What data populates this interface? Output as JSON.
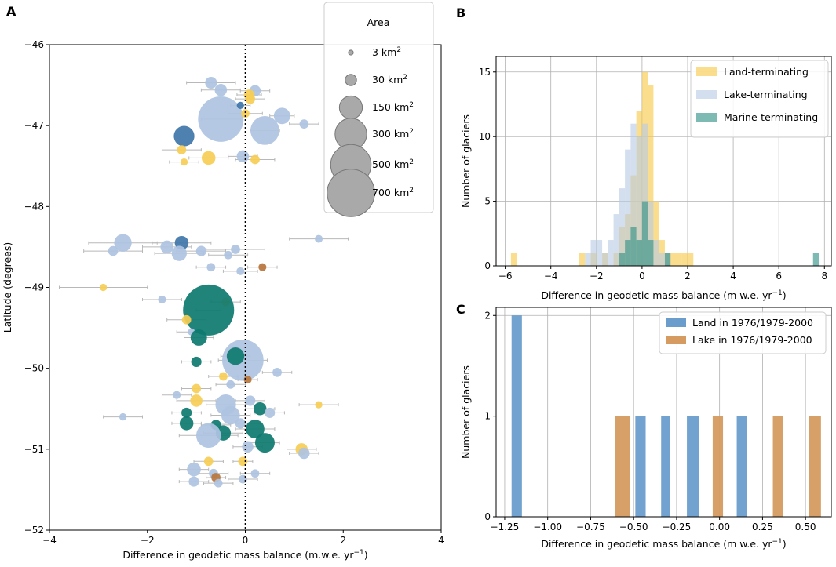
{
  "colors": {
    "land": "#f6cd55",
    "lake": "#aec3e1",
    "marine": "#0e7a6f",
    "dark_blue": "#3f75a9",
    "brown": "#b9753c",
    "error_bar": "#b8b8b8",
    "hist_land": "#f7c948",
    "hist_lake": "#b8cbe4",
    "hist_marine": "#2e8f86",
    "histC_land": "#6a9dcc",
    "histC_lake": "#d59b61"
  },
  "chart_data": [
    {
      "panel": "A",
      "type": "scatter",
      "xlabel": "Difference in geodetic mass balance (m.w.e. yr",
      "xlabel_sup": "−1",
      "xlabel_end": ")",
      "ylabel": "Latitude (degrees)",
      "xlim": [
        -4,
        4
      ],
      "ylim": [
        -52,
        -46
      ],
      "xticks": [
        -4,
        -2,
        0,
        2,
        4
      ],
      "yticks": [
        -52,
        -51,
        -50,
        -49,
        -48,
        -47,
        -46
      ],
      "reference_line_x": 0,
      "legend": {
        "title": "Area",
        "unit": "km",
        "sup": "2",
        "entries": [
          {
            "label": "3 km",
            "area": 3
          },
          {
            "label": "30 km",
            "area": 30
          },
          {
            "label": "150 km",
            "area": 150
          },
          {
            "label": "300 km",
            "area": 300
          },
          {
            "label": "500 km",
            "area": 500
          },
          {
            "label": "700 km",
            "area": 700
          }
        ]
      },
      "points": [
        {
          "x": -0.5,
          "y": -46.92,
          "area": 550,
          "c": "lake",
          "xerr": 0.4
        },
        {
          "x": 0.4,
          "y": -47.06,
          "area": 210,
          "c": "lake",
          "xerr": 0.3
        },
        {
          "x": 0.75,
          "y": -46.88,
          "area": 60,
          "c": "lake",
          "xerr": 0.25
        },
        {
          "x": -1.25,
          "y": -47.13,
          "area": 100,
          "c": "dark_blue",
          "xerr": 0.2
        },
        {
          "x": -0.7,
          "y": -46.47,
          "area": 28,
          "c": "lake",
          "xerr": 0.5
        },
        {
          "x": -0.5,
          "y": -46.56,
          "area": 30,
          "c": "lake",
          "xerr": 0.4
        },
        {
          "x": 0.2,
          "y": -46.57,
          "area": 25,
          "c": "lake",
          "xerr": 0.3
        },
        {
          "x": 0.08,
          "y": -46.62,
          "area": 22,
          "c": "land",
          "xerr": 0.25
        },
        {
          "x": 0.1,
          "y": -46.67,
          "area": 18,
          "c": "land",
          "xerr": 0.3
        },
        {
          "x": -0.1,
          "y": -46.75,
          "area": 8,
          "c": "dark_blue",
          "xerr": 0.2
        },
        {
          "x": 0.0,
          "y": -46.85,
          "area": 12,
          "c": "land",
          "xerr": 0.35
        },
        {
          "x": 1.2,
          "y": -46.98,
          "area": 15,
          "c": "lake",
          "xerr": 0.3
        },
        {
          "x": -1.3,
          "y": -47.3,
          "area": 15,
          "c": "land",
          "xerr": 0.4
        },
        {
          "x": -0.75,
          "y": -47.4,
          "area": 40,
          "c": "land",
          "xerr": 0.4
        },
        {
          "x": -0.05,
          "y": -47.38,
          "area": 30,
          "c": "lake",
          "xerr": 0.3
        },
        {
          "x": 0.2,
          "y": -47.42,
          "area": 15,
          "c": "land",
          "xerr": 0.4
        },
        {
          "x": -1.25,
          "y": -47.45,
          "area": 8,
          "c": "land",
          "xerr": 0.3
        },
        {
          "x": -2.5,
          "y": -48.45,
          "area": 70,
          "c": "lake",
          "xerr": 0.7
        },
        {
          "x": -1.3,
          "y": -48.45,
          "area": 40,
          "c": "dark_blue",
          "xerr": 0.6
        },
        {
          "x": -2.7,
          "y": -48.55,
          "area": 18,
          "c": "lake",
          "xerr": 0.6
        },
        {
          "x": -1.6,
          "y": -48.5,
          "area": 35,
          "c": "lake",
          "xerr": 0.5
        },
        {
          "x": -1.35,
          "y": -48.58,
          "area": 50,
          "c": "lake",
          "xerr": 0.5
        },
        {
          "x": -0.9,
          "y": -48.55,
          "area": 20,
          "c": "lake",
          "xerr": 0.5
        },
        {
          "x": -0.2,
          "y": -48.53,
          "area": 15,
          "c": "lake",
          "xerr": 0.6
        },
        {
          "x": -0.35,
          "y": -48.6,
          "area": 12,
          "c": "lake",
          "xerr": 0.4
        },
        {
          "x": 1.5,
          "y": -48.4,
          "area": 10,
          "c": "lake",
          "xerr": 0.6
        },
        {
          "x": -0.7,
          "y": -48.75,
          "area": 12,
          "c": "lake",
          "xerr": 0.3
        },
        {
          "x": 0.35,
          "y": -48.75,
          "area": 10,
          "c": "brown",
          "xerr": 0.3
        },
        {
          "x": -0.1,
          "y": -48.8,
          "area": 10,
          "c": "lake",
          "xerr": 0.35
        },
        {
          "x": -2.9,
          "y": -49.0,
          "area": 8,
          "c": "land",
          "xerr": 0.9
        },
        {
          "x": -0.4,
          "y": -49.18,
          "area": 12,
          "c": "land",
          "xerr": 0.3
        },
        {
          "x": -1.7,
          "y": -49.15,
          "area": 10,
          "c": "lake",
          "xerr": 0.4
        },
        {
          "x": -0.75,
          "y": -49.28,
          "area": 700,
          "c": "marine",
          "xerr": 0.25
        },
        {
          "x": -1.2,
          "y": -49.4,
          "area": 15,
          "c": "land",
          "xerr": 0.4
        },
        {
          "x": -1.1,
          "y": -49.55,
          "area": 8,
          "c": "lake",
          "xerr": 0.3
        },
        {
          "x": -0.95,
          "y": -49.62,
          "area": 60,
          "c": "marine",
          "xerr": 0.3
        },
        {
          "x": -0.05,
          "y": -49.9,
          "area": 450,
          "c": "lake",
          "xerr": 0.5
        },
        {
          "x": -0.2,
          "y": -49.85,
          "area": 70,
          "c": "marine",
          "xerr": 0.3
        },
        {
          "x": -1.0,
          "y": -49.92,
          "area": 20,
          "c": "marine",
          "xerr": 0.3
        },
        {
          "x": 0.65,
          "y": -50.05,
          "area": 15,
          "c": "lake",
          "xerr": 0.3
        },
        {
          "x": -0.45,
          "y": -50.1,
          "area": 12,
          "c": "land",
          "xerr": 0.3
        },
        {
          "x": 0.05,
          "y": -50.14,
          "area": 10,
          "c": "brown",
          "xerr": 0.2
        },
        {
          "x": -0.3,
          "y": -50.2,
          "area": 12,
          "c": "lake",
          "xerr": 0.3
        },
        {
          "x": -1.0,
          "y": -50.25,
          "area": 15,
          "c": "land",
          "xerr": 0.3
        },
        {
          "x": -1.4,
          "y": -50.33,
          "area": 10,
          "c": "lake",
          "xerr": 0.3
        },
        {
          "x": -1.0,
          "y": -50.4,
          "area": 30,
          "c": "land",
          "xerr": 0.4
        },
        {
          "x": -0.4,
          "y": -50.45,
          "area": 100,
          "c": "lake",
          "xerr": 0.4
        },
        {
          "x": 0.1,
          "y": -50.4,
          "area": 20,
          "c": "lake",
          "xerr": 0.3
        },
        {
          "x": 0.3,
          "y": -50.5,
          "area": 35,
          "c": "marine",
          "xerr": 0.3
        },
        {
          "x": 0.5,
          "y": -50.55,
          "area": 20,
          "c": "lake",
          "xerr": 0.3
        },
        {
          "x": -0.3,
          "y": -50.58,
          "area": 80,
          "c": "lake",
          "xerr": 0.4
        },
        {
          "x": 1.5,
          "y": -50.45,
          "area": 8,
          "c": "land",
          "xerr": 0.4
        },
        {
          "x": -1.2,
          "y": -50.55,
          "area": 20,
          "c": "marine",
          "xerr": 0.3
        },
        {
          "x": -2.5,
          "y": -50.6,
          "area": 8,
          "c": "lake",
          "xerr": 0.4
        },
        {
          "x": -1.2,
          "y": -50.68,
          "area": 40,
          "c": "marine",
          "xerr": 0.3
        },
        {
          "x": -0.45,
          "y": -50.8,
          "area": 50,
          "c": "marine",
          "xerr": 0.4
        },
        {
          "x": -0.6,
          "y": -50.7,
          "area": 20,
          "c": "marine",
          "xerr": 0.3
        },
        {
          "x": -0.1,
          "y": -50.68,
          "area": 20,
          "c": "lake",
          "xerr": 0.4
        },
        {
          "x": 0.2,
          "y": -50.75,
          "area": 80,
          "c": "marine",
          "xerr": 0.4
        },
        {
          "x": -0.75,
          "y": -50.83,
          "area": 150,
          "c": "lake",
          "xerr": 0.6
        },
        {
          "x": 0.4,
          "y": -50.92,
          "area": 90,
          "c": "marine",
          "xerr": 0.3
        },
        {
          "x": 0.05,
          "y": -50.97,
          "area": 25,
          "c": "lake",
          "xerr": 0.3
        },
        {
          "x": 1.15,
          "y": -51.0,
          "area": 30,
          "c": "land",
          "xerr": 0.3
        },
        {
          "x": 1.2,
          "y": -51.05,
          "area": 25,
          "c": "lake",
          "xerr": 0.3
        },
        {
          "x": -0.75,
          "y": -51.15,
          "area": 15,
          "c": "land",
          "xerr": 0.3
        },
        {
          "x": -0.05,
          "y": -51.15,
          "area": 15,
          "c": "land",
          "xerr": 0.2
        },
        {
          "x": -1.05,
          "y": -51.25,
          "area": 40,
          "c": "lake",
          "xerr": 0.3
        },
        {
          "x": -0.65,
          "y": -51.3,
          "area": 15,
          "c": "lake",
          "xerr": 0.3
        },
        {
          "x": 0.2,
          "y": -51.3,
          "area": 12,
          "c": "lake",
          "xerr": 0.3
        },
        {
          "x": -1.05,
          "y": -51.4,
          "area": 20,
          "c": "lake",
          "xerr": 0.3
        },
        {
          "x": -0.6,
          "y": -51.35,
          "area": 15,
          "c": "brown",
          "xerr": 0.2
        },
        {
          "x": -0.05,
          "y": -51.37,
          "area": 12,
          "c": "lake",
          "xerr": 0.3
        },
        {
          "x": -0.55,
          "y": -51.42,
          "area": 12,
          "c": "lake",
          "xerr": 0.3
        }
      ]
    },
    {
      "panel": "B",
      "type": "bar",
      "xlabel": "Difference in geodetic mass balance (m w.e. yr",
      "xlabel_sup": "−1",
      "xlabel_end": ")",
      "ylabel": "Number of glaciers",
      "xlim": [
        -6.4,
        8.3
      ],
      "ylim": [
        0,
        16.2
      ],
      "xticks": [
        -6,
        -4,
        -2,
        0,
        2,
        4,
        6,
        8
      ],
      "yticks": [
        0,
        5,
        10,
        15
      ],
      "bin_width": 0.25,
      "legend": [
        "Land-terminating",
        "Lake-terminating",
        "Marine-terminating"
      ],
      "series": [
        {
          "name": "Land-terminating",
          "color": "hist_land",
          "bins": [
            [
              -5.75,
              1
            ],
            [
              -2.75,
              1
            ],
            [
              -2.25,
              1
            ],
            [
              -1.75,
              1
            ],
            [
              -1.25,
              1
            ],
            [
              -1.0,
              3
            ],
            [
              -0.75,
              4
            ],
            [
              -0.5,
              7
            ],
            [
              -0.25,
              12
            ],
            [
              0.0,
              15
            ],
            [
              0.25,
              14
            ],
            [
              0.5,
              5
            ],
            [
              0.75,
              2
            ],
            [
              1.0,
              1
            ],
            [
              1.25,
              1
            ],
            [
              1.5,
              1
            ],
            [
              1.75,
              1
            ],
            [
              2.0,
              1
            ]
          ]
        },
        {
          "name": "Lake-terminating",
          "color": "hist_lake",
          "bins": [
            [
              -2.5,
              1
            ],
            [
              -2.25,
              2
            ],
            [
              -2.0,
              2
            ],
            [
              -1.75,
              1
            ],
            [
              -1.5,
              2
            ],
            [
              -1.25,
              4
            ],
            [
              -1.0,
              6
            ],
            [
              -0.75,
              9
            ],
            [
              -0.5,
              11
            ],
            [
              -0.25,
              10
            ],
            [
              0.0,
              11
            ],
            [
              0.25,
              5
            ],
            [
              0.5,
              2
            ],
            [
              0.75,
              1
            ],
            [
              1.0,
              1
            ]
          ]
        },
        {
          "name": "Marine-terminating",
          "color": "hist_marine",
          "bins": [
            [
              -1.0,
              1
            ],
            [
              -0.75,
              2
            ],
            [
              -0.5,
              3
            ],
            [
              -0.25,
              2
            ],
            [
              0.0,
              5
            ],
            [
              0.25,
              2
            ],
            [
              1.0,
              1
            ],
            [
              7.5,
              1
            ]
          ]
        }
      ]
    },
    {
      "panel": "C",
      "type": "bar",
      "xlabel": "Difference in geodetic mass balance (m w.e. yr",
      "xlabel_sup": "−1",
      "xlabel_end": ")",
      "ylabel": "Number of glaciers",
      "xlim": [
        -1.3,
        0.65
      ],
      "ylim": [
        0,
        2.08
      ],
      "xticks": [
        -1.25,
        -1.0,
        -0.75,
        -0.5,
        -0.25,
        0.0,
        0.25,
        0.5
      ],
      "xtick_labels": [
        "−1.25",
        "−1.00",
        "−0.75",
        "−0.50",
        "−0.25",
        "0.00",
        "0.25",
        "0.50"
      ],
      "yticks": [
        0,
        1,
        2
      ],
      "legend": [
        "Land in 1976/1979-2000",
        "Lake in 1976/1979-2000"
      ],
      "series": [
        {
          "name": "Land in 1976/1979-2000",
          "color": "histC_land",
          "bins": [
            [
              -1.21,
              -1.15,
              2
            ],
            [
              -0.49,
              -0.43,
              1
            ],
            [
              -0.34,
              -0.29,
              1
            ],
            [
              -0.19,
              -0.12,
              1
            ],
            [
              0.1,
              0.16,
              1
            ]
          ]
        },
        {
          "name": "Lake in 1976/1979-2000",
          "color": "histC_lake",
          "bins": [
            [
              -0.61,
              -0.52,
              1
            ],
            [
              -0.04,
              0.02,
              1
            ],
            [
              0.31,
              0.37,
              1
            ],
            [
              0.52,
              0.59,
              1
            ]
          ]
        }
      ]
    }
  ],
  "panel_labels": [
    "A",
    "B",
    "C"
  ]
}
